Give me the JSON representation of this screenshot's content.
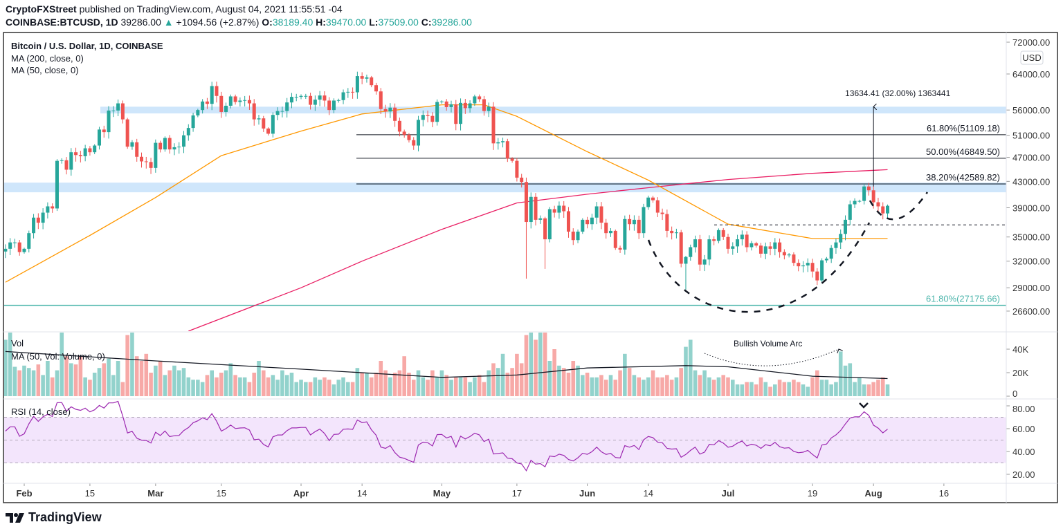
{
  "header": {
    "publisher": "CryptoFXStreet",
    "published_text": "published on TradingView.com, August 04, 2021 11:55:51 -04",
    "symbol": "COINBASE:BTCUSD, 1D",
    "last": "39286.00",
    "change": "+1094.56 (+2.87%)",
    "o_label": "O:",
    "o": "38189.40",
    "h_label": "H:",
    "h": "39470.00",
    "l_label": "L:",
    "l": "37509.00",
    "c_label": "C:",
    "c": "39286.00"
  },
  "legend": {
    "title": "Bitcoin / U.S. Dollar, 1D, COINBASE",
    "ma200": "MA (200, close, 0)",
    "ma50": "MA (50, close, 0)",
    "vol": "Vol",
    "vol_ma": "MA (50, Vol: Volume, 0)",
    "rsi": "RSI (14, close)"
  },
  "currency_badge": "USD",
  "brand": "TradingView",
  "colors": {
    "up": "#26a69a",
    "down": "#ef5350",
    "ma200": "#e91e63",
    "ma50": "#ff9800",
    "rsi": "#9c27b0",
    "rsi_band": "#f3e5fc",
    "zone": "#cfe6fb",
    "fib_low": "#4db6ac"
  },
  "chart_data": [
    {
      "type": "candlestick",
      "pane": "price",
      "scale": "log",
      "ylim": [
        25500,
        74000
      ],
      "y_ticks": [
        "72000.00",
        "64000.00",
        "56000.00",
        "51000.00",
        "47000.00",
        "43000.00",
        "39000.00",
        "35000.00",
        "32000.00",
        "29000.00",
        "26600.00"
      ],
      "year": 2021,
      "months": [
        {
          "month": 1,
          "start_day": 28,
          "close": [
            33500,
            34300,
            34300,
            33100
          ]
        },
        {
          "month": 2,
          "start_day": 1,
          "close": [
            33500,
            35500,
            37600,
            36900,
            38300,
            39200,
            38900,
            46400,
            46500,
            44900,
            47900,
            47400,
            47200,
            48600,
            47900,
            49100,
            52100,
            51600,
            55900,
            55900,
            57400,
            54100,
            48900,
            49700,
            47100,
            46300,
            46200,
            45200
          ]
        },
        {
          "month": 3,
          "start_day": 1,
          "close": [
            49600,
            48400,
            50500,
            48400,
            48800,
            48900,
            51000,
            52400,
            54900,
            56000,
            57800,
            57300,
            61200,
            59000,
            55600,
            56900,
            58900,
            57700,
            58000,
            58100,
            57400,
            54100,
            54300,
            52300,
            51300,
            55000,
            55800,
            55800,
            57600,
            58800,
            58800
          ]
        },
        {
          "month": 4,
          "start_day": 1,
          "close": [
            59000,
            59000,
            57100,
            58200,
            59100,
            58000,
            56000,
            58000,
            58100,
            59800,
            59900,
            59800,
            63500,
            62900,
            63200,
            61400,
            60000,
            56200,
            55700,
            56500,
            53800,
            51700,
            51100,
            50100,
            49100,
            54000,
            55000,
            54800,
            53600,
            57700
          ]
        },
        {
          "month": 5,
          "start_day": 1,
          "close": [
            57800,
            56600,
            57200,
            53200,
            57500,
            56400,
            57400,
            58900,
            58300,
            55800,
            56700,
            49500,
            49700,
            49900,
            46800,
            46400,
            43600,
            42900,
            37000,
            40600,
            37300,
            37500,
            34700,
            38800,
            38300,
            39300,
            38500,
            35700,
            34600,
            35700,
            37300
          ]
        },
        {
          "month": 6,
          "start_day": 1,
          "close": [
            36700,
            37600,
            39200,
            36900,
            35500,
            35800,
            33600,
            33400,
            37400,
            36700,
            37300,
            35500,
            39100,
            40500,
            40100,
            38300,
            38100,
            35800,
            35500,
            35600,
            31700,
            32500,
            33700,
            34700,
            31600,
            32200,
            34700,
            34500,
            35900,
            35000
          ]
        },
        {
          "month": 7,
          "start_day": 1,
          "close": [
            33500,
            33800,
            34700,
            35300,
            33700,
            34200,
            33900,
            32900,
            33800,
            33500,
            34300,
            33100,
            32700,
            32800,
            31800,
            31400,
            31500,
            31800,
            30800,
            29800,
            32100,
            32300,
            33600,
            34300,
            35400,
            37300,
            39500,
            40000,
            40000,
            42200,
            41600
          ]
        },
        {
          "month": 8,
          "start_day": 1,
          "close": [
            39800,
            39200,
            38189.4,
            39286
          ]
        }
      ],
      "notable_wicks": [
        {
          "date": "2021-05-19",
          "low": 30000
        },
        {
          "date": "2021-05-23",
          "low": 31100
        },
        {
          "date": "2021-06-22",
          "low": 28800
        },
        {
          "date": "2021-07-20",
          "low": 29300
        },
        {
          "date": "2021-08-04",
          "high": 39470,
          "low": 37509
        }
      ],
      "ma200": [
        [
          "2021-03-08",
          24700
        ],
        [
          "2021-04-01",
          29000
        ],
        [
          "2021-04-14",
          32000
        ],
        [
          "2021-05-01",
          36000
        ],
        [
          "2021-05-17",
          39700
        ],
        [
          "2021-06-01",
          41000
        ],
        [
          "2021-06-14",
          42000
        ],
        [
          "2021-07-01",
          43300
        ],
        [
          "2021-07-19",
          44300
        ],
        [
          "2021-08-04",
          44900
        ]
      ],
      "ma50": [
        [
          "2021-01-28",
          29600
        ],
        [
          "2021-02-15",
          35200
        ],
        [
          "2021-03-01",
          40500
        ],
        [
          "2021-03-15",
          47300
        ],
        [
          "2021-04-01",
          51800
        ],
        [
          "2021-04-14",
          55200
        ],
        [
          "2021-05-01",
          57100
        ],
        [
          "2021-05-10",
          57100
        ],
        [
          "2021-05-17",
          54700
        ],
        [
          "2021-06-01",
          48000
        ],
        [
          "2021-06-14",
          43200
        ],
        [
          "2021-07-01",
          36700
        ],
        [
          "2021-07-19",
          34800
        ],
        [
          "2021-08-04",
          34800
        ]
      ],
      "fib_levels": [
        {
          "label": "61.80%(51109.18)",
          "value": 51109.18
        },
        {
          "label": "50.00%(46849.50)",
          "value": 46849.5
        },
        {
          "label": "38.20%(42589.82)",
          "value": 42589.82
        },
        {
          "label": "61.80%(27175.66)",
          "value": 27175.66
        }
      ],
      "zones": [
        [
          55300,
          56700
        ],
        [
          41300,
          42800
        ]
      ],
      "neckline": 36600,
      "measure": {
        "label": "13634.41 (32.00%) 1363441",
        "from": 42200,
        "to": 56700,
        "date": "2021-08-01"
      },
      "annotations": [
        "cup-and-handle"
      ]
    },
    {
      "type": "bar",
      "pane": "volume",
      "unit": "K",
      "ylim": [
        0,
        56
      ],
      "y_ticks": [
        "40K",
        "20K",
        "0"
      ],
      "values": [
        48,
        58,
        25,
        22,
        26,
        24,
        22,
        27,
        18,
        30,
        16,
        22,
        55,
        34,
        28,
        27,
        34,
        16,
        14,
        20,
        24,
        28,
        32,
        18,
        30,
        12,
        52,
        56,
        34,
        30,
        36,
        20,
        26,
        30,
        18,
        22,
        26,
        22,
        24,
        16,
        14,
        14,
        12,
        18,
        22,
        16,
        20,
        22,
        28,
        18,
        16,
        16,
        12,
        20,
        30,
        22,
        16,
        18,
        14,
        22,
        18,
        20,
        12,
        14,
        12,
        12,
        16,
        14,
        16,
        14,
        10,
        14,
        16,
        12,
        12,
        24,
        20,
        20,
        16,
        20,
        30,
        22,
        16,
        20,
        22,
        34,
        20,
        14,
        22,
        16,
        14,
        22,
        16,
        22,
        18,
        14,
        16,
        16,
        16,
        12,
        16,
        18,
        12,
        22,
        28,
        24,
        36,
        20,
        24,
        36,
        28,
        52,
        56,
        48,
        56,
        58,
        30,
        40,
        26,
        24,
        20,
        30,
        26,
        18,
        20,
        16,
        16,
        18,
        14,
        18,
        14,
        22,
        36,
        24,
        18,
        16,
        14,
        16,
        22,
        16,
        16,
        18,
        14,
        16,
        24,
        42,
        48,
        22,
        18,
        22,
        16,
        14,
        16,
        18,
        16,
        14,
        10,
        10,
        12,
        12,
        10,
        16,
        12,
        8,
        10,
        14,
        12,
        12,
        14,
        12,
        10,
        8,
        16,
        22,
        14,
        14,
        10,
        12,
        38,
        26,
        28,
        12,
        16,
        10,
        10,
        12,
        14,
        16,
        10
      ],
      "ma50": [
        [
          "2021-01-28",
          38
        ],
        [
          "2021-03-01",
          30
        ],
        [
          "2021-04-01",
          23
        ],
        [
          "2021-05-01",
          16
        ],
        [
          "2021-05-17",
          18
        ],
        [
          "2021-06-01",
          24
        ],
        [
          "2021-06-22",
          26
        ],
        [
          "2021-07-01",
          25
        ],
        [
          "2021-07-19",
          17
        ],
        [
          "2021-08-04",
          15
        ]
      ],
      "annotation": "Bullish Volume Arc"
    },
    {
      "type": "line",
      "pane": "rsi",
      "period": 14,
      "ylim": [
        15,
        85
      ],
      "y_ticks": [
        "80.00",
        "60.00",
        "40.00",
        "20.00"
      ],
      "band": [
        30,
        70
      ],
      "midline": 50
    }
  ],
  "x_axis": {
    "ticks": [
      {
        "label": "Feb",
        "date": "2021-02-01",
        "bold": true
      },
      {
        "label": "15",
        "date": "2021-02-15"
      },
      {
        "label": "Mar",
        "date": "2021-03-01",
        "bold": true
      },
      {
        "label": "15",
        "date": "2021-03-15"
      },
      {
        "label": "Apr",
        "date": "2021-04-01",
        "bold": true
      },
      {
        "label": "14",
        "date": "2021-04-14"
      },
      {
        "label": "May",
        "date": "2021-05-01",
        "bold": true
      },
      {
        "label": "17",
        "date": "2021-05-17"
      },
      {
        "label": "Jun",
        "date": "2021-06-01",
        "bold": true
      },
      {
        "label": "14",
        "date": "2021-06-14"
      },
      {
        "label": "Jul",
        "date": "2021-07-01",
        "bold": true
      },
      {
        "label": "19",
        "date": "2021-07-19"
      },
      {
        "label": "Aug",
        "date": "2021-08-01",
        "bold": true
      },
      {
        "label": "16",
        "date": "2021-08-16"
      }
    ]
  }
}
